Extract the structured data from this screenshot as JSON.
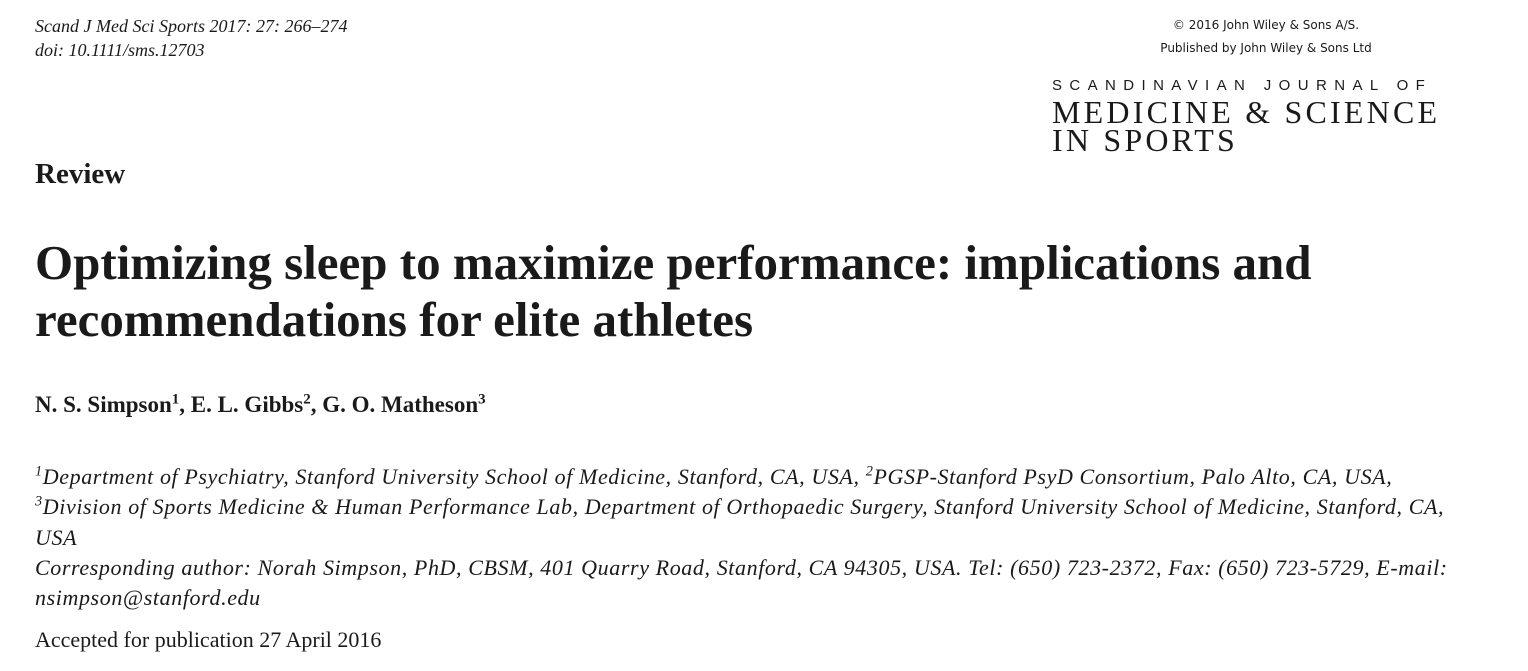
{
  "header": {
    "citation": "Scand J Med Sci Sports 2017: 27: 266–274",
    "doi": "doi: 10.1111/sms.12703",
    "copyright": "© 2016 John Wiley & Sons A/S.",
    "publisher": "Published by John Wiley & Sons Ltd",
    "journal": [
      "SCANDINAVIAN JOURNAL OF",
      "MEDICINE & SCIENCE",
      "IN SPORTS"
    ]
  },
  "article": {
    "section": "Review",
    "title": [
      "Optimizing sleep to maximize performance: implications and",
      "recommendations for elite athletes"
    ],
    "authors": [
      {
        "name": "N. S. Simpson",
        "mark": "1",
        "after": ", "
      },
      {
        "name": "E. L. Gibbs",
        "mark": "2",
        "after": ", "
      },
      {
        "name": "G. O. Matheson",
        "mark": "3"
      }
    ],
    "affiliations": [
      {
        "mark": "1",
        "text": "Department of Psychiatry, Stanford University School of Medicine, Stanford, CA, USA, "
      },
      {
        "mark": "2",
        "text": "PGSP-Stanford PsyD Consortium, Palo Alto, CA, USA, "
      },
      {
        "mark": "3",
        "text": "Division of Sports Medicine & Human Performance Lab, Department of Orthopaedic Surgery, Stanford University School of Medicine, Stanford, CA, USA"
      }
    ],
    "corresponding": "Corresponding author: Norah Simpson, PhD, CBSM, 401 Quarry Road, Stanford, CA 94305, USA. Tel: (650) 723-2372, Fax: (650) 723-5729, E-mail: nsimpson@stanford.edu",
    "accepted": "Accepted for publication 27 April 2016"
  }
}
